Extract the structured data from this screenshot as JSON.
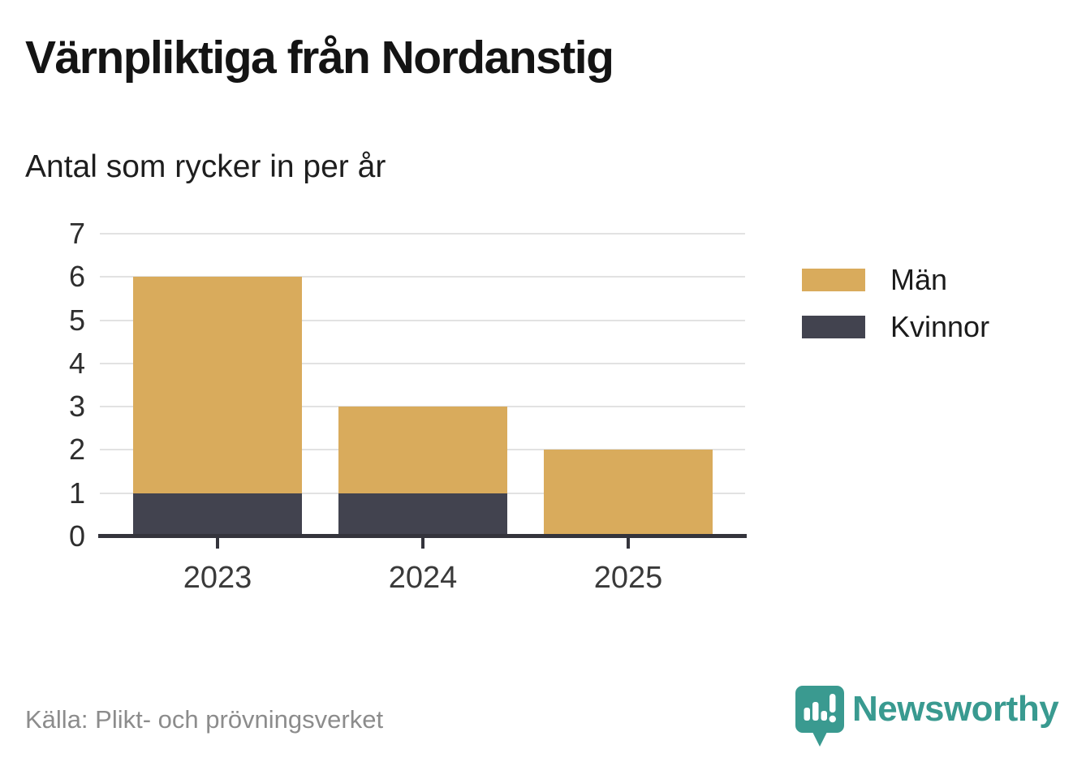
{
  "chart_data": {
    "type": "bar",
    "stacked": true,
    "title": "Värnpliktiga från Nordanstig",
    "subtitle": "Antal som rycker in per år",
    "categories": [
      "2023",
      "2024",
      "2025"
    ],
    "series": [
      {
        "name": "Män",
        "color": "#D9AB5C",
        "values": [
          5,
          2,
          2
        ]
      },
      {
        "name": "Kvinnor",
        "color": "#42434F",
        "values": [
          1,
          1,
          0
        ]
      }
    ],
    "stack_totals": [
      6,
      3,
      2
    ],
    "xlabel": "",
    "ylabel": "",
    "ylim": [
      0,
      7
    ],
    "yticks": [
      0,
      1,
      2,
      3,
      4,
      5,
      6,
      7
    ],
    "grid": true,
    "legend_position": "right",
    "colors": {
      "gridline": "#e2e2e2",
      "axis": "#34343c",
      "tick_label": "#3a3a3a"
    }
  },
  "footer": {
    "source": "Källa: Plikt- och prövningsverket",
    "brand": "Newsworthy",
    "brand_color": "#399a90"
  }
}
